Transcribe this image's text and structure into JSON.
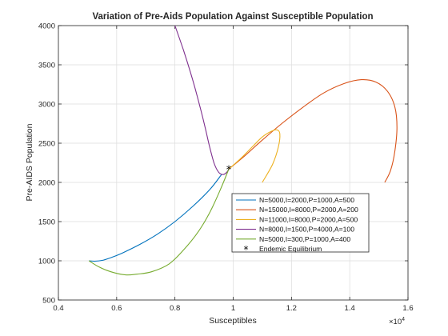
{
  "chart_data": {
    "type": "line",
    "title": "Variation of Pre-Aids Population Against Susceptible Population",
    "xlabel": "Susceptibles",
    "ylabel": "Pre-AIDS Population",
    "x_exponent_label": "×10",
    "x_exponent_power": "4",
    "x_scale_factor": 10000,
    "xlim": [
      4000,
      16000
    ],
    "ylim": [
      500,
      4000
    ],
    "xticks": [
      4000,
      6000,
      8000,
      10000,
      12000,
      14000,
      16000
    ],
    "xtick_labels": [
      "0.4",
      "0.6",
      "0.8",
      "1",
      "1.2",
      "1.4",
      "1.6"
    ],
    "yticks": [
      500,
      1000,
      1500,
      2000,
      2500,
      3000,
      3500,
      4000
    ],
    "ytick_labels": [
      "500",
      "1000",
      "1500",
      "2000",
      "2500",
      "3000",
      "3500",
      "4000"
    ],
    "grid": true,
    "legend_position": "lower-right-center",
    "series": [
      {
        "name": "N=5000,I=2000,P=1000,A=500",
        "color": "#0072BD",
        "points": [
          [
            9600,
            2100
          ],
          [
            9200,
            1910
          ],
          [
            8600,
            1690
          ],
          [
            8000,
            1500
          ],
          [
            7400,
            1340
          ],
          [
            6800,
            1210
          ],
          [
            6200,
            1100
          ],
          [
            5800,
            1040
          ],
          [
            5500,
            1005
          ],
          [
            5250,
            995
          ],
          [
            5050,
            1000
          ]
        ]
      },
      {
        "name": "N=15000,I=8000,P=2000,A=200",
        "color": "#D95319",
        "points": [
          [
            9850,
            2170
          ],
          [
            10400,
            2340
          ],
          [
            11000,
            2540
          ],
          [
            11700,
            2760
          ],
          [
            12400,
            2960
          ],
          [
            13100,
            3140
          ],
          [
            13800,
            3260
          ],
          [
            14400,
            3310
          ],
          [
            14900,
            3280
          ],
          [
            15300,
            3160
          ],
          [
            15550,
            2960
          ],
          [
            15620,
            2700
          ],
          [
            15550,
            2400
          ],
          [
            15400,
            2150
          ],
          [
            15200,
            2000
          ]
        ]
      },
      {
        "name": "N=11000,I=8000,P=2000,A=500",
        "color": "#EDB120",
        "points": [
          [
            9850,
            2170
          ],
          [
            10300,
            2320
          ],
          [
            10700,
            2470
          ],
          [
            11000,
            2580
          ],
          [
            11300,
            2650
          ],
          [
            11500,
            2670
          ],
          [
            11600,
            2620
          ],
          [
            11550,
            2450
          ],
          [
            11350,
            2230
          ],
          [
            11000,
            2000
          ]
        ]
      },
      {
        "name": "N=8000,I=1500,P=4000,A=100",
        "color": "#7E2F8E",
        "points": [
          [
            8000,
            4000
          ],
          [
            8300,
            3680
          ],
          [
            8600,
            3320
          ],
          [
            8850,
            2980
          ],
          [
            9050,
            2680
          ],
          [
            9200,
            2440
          ],
          [
            9350,
            2240
          ],
          [
            9500,
            2130
          ],
          [
            9650,
            2100
          ],
          [
            9780,
            2130
          ],
          [
            9850,
            2170
          ]
        ]
      },
      {
        "name": "N=5000,I=300,P=1000,A=400",
        "color": "#77AC30",
        "points": [
          [
            9850,
            2170
          ],
          [
            9550,
            1900
          ],
          [
            9200,
            1620
          ],
          [
            8800,
            1370
          ],
          [
            8300,
            1140
          ],
          [
            7800,
            960
          ],
          [
            7200,
            860
          ],
          [
            6700,
            830
          ],
          [
            6300,
            820
          ],
          [
            5800,
            860
          ],
          [
            5400,
            920
          ],
          [
            5050,
            1000
          ]
        ]
      }
    ],
    "equilibrium": {
      "name": "Endemic Equilibrium",
      "x": 9850,
      "y": 2170,
      "marker": "*"
    }
  }
}
